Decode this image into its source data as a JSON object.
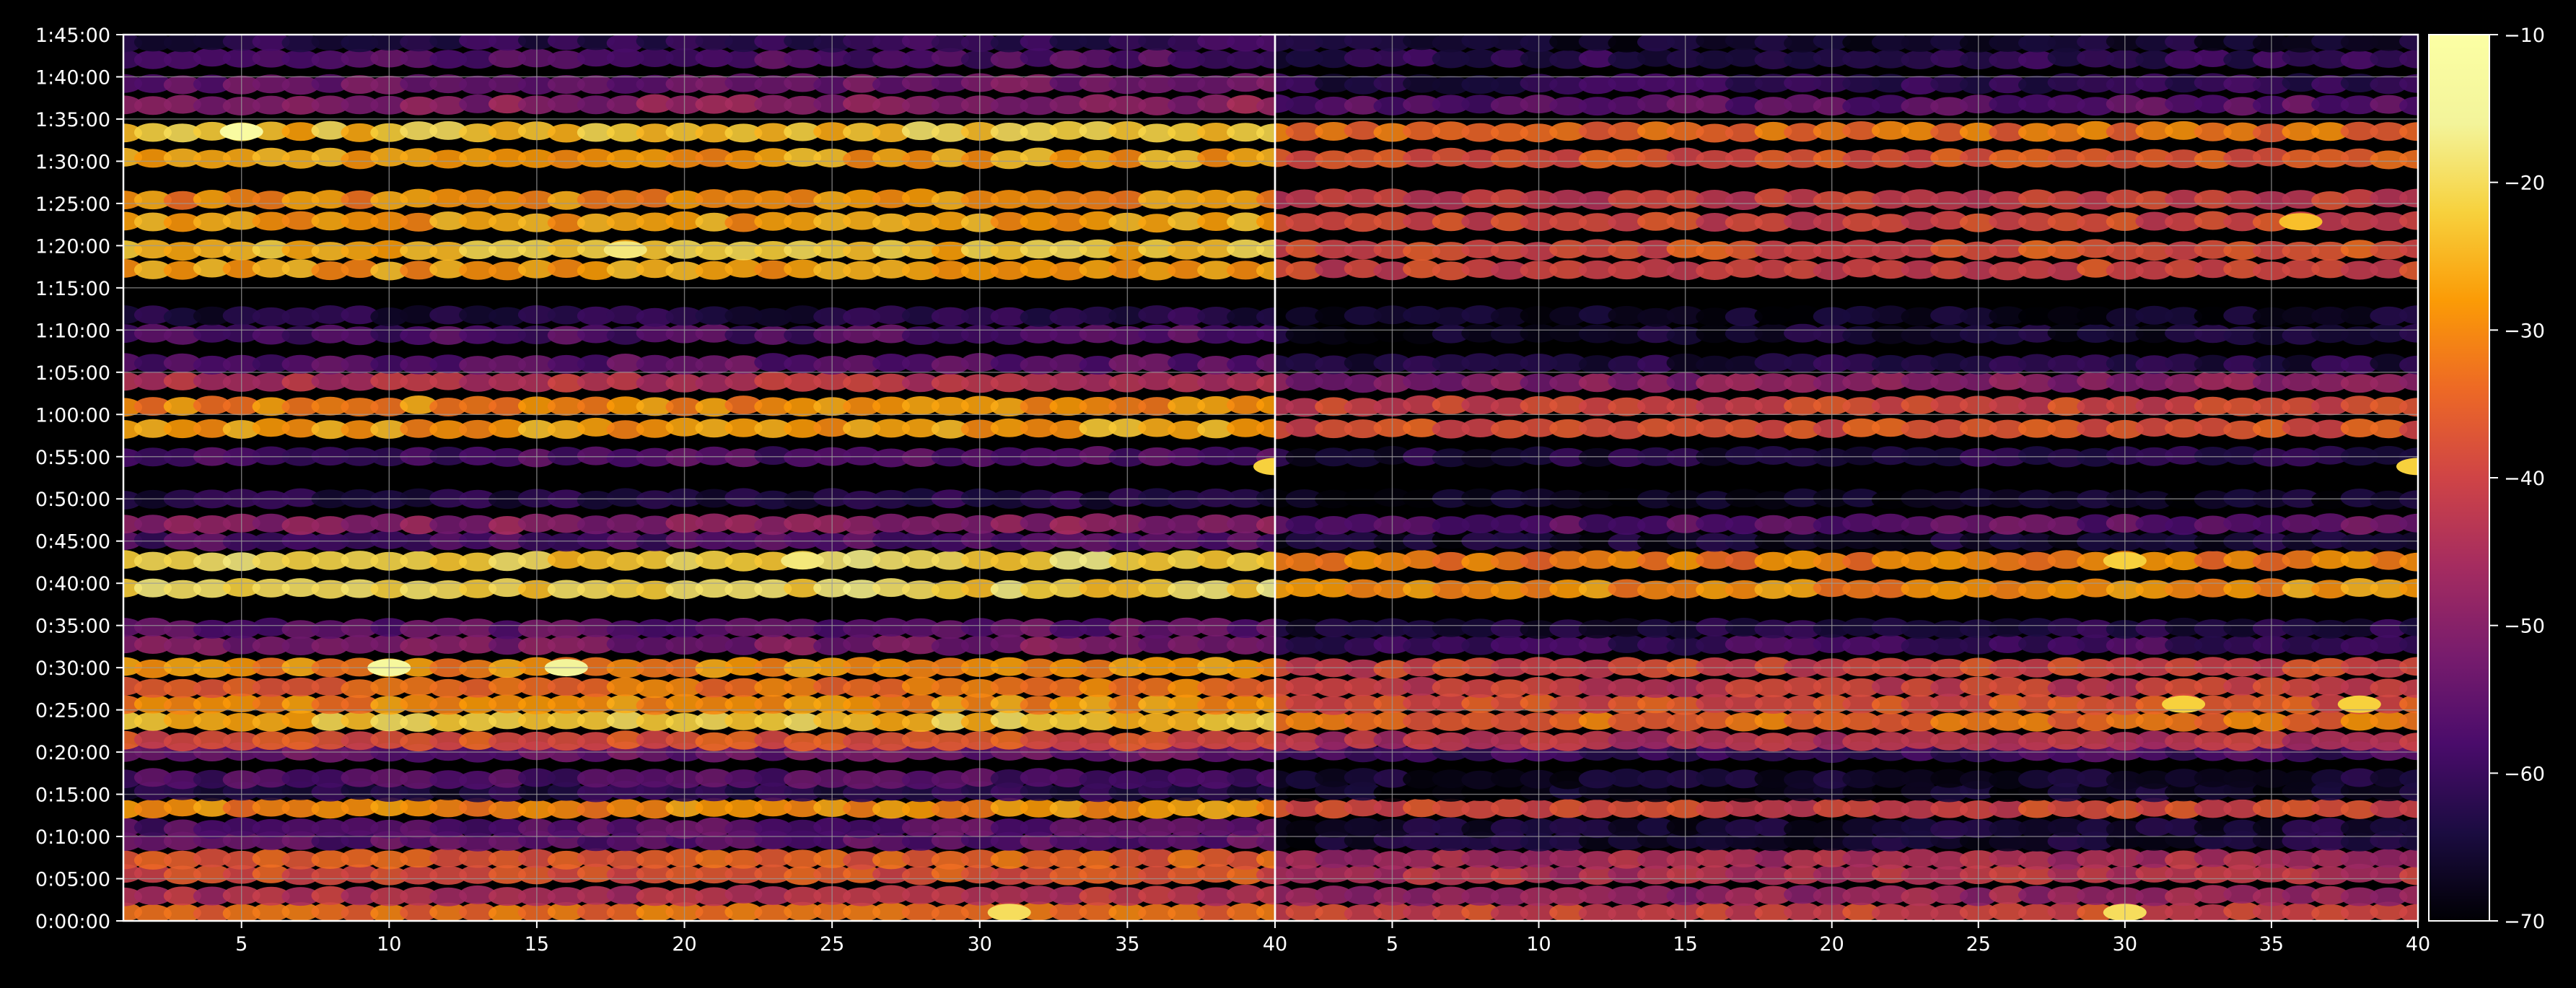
{
  "chart_data": {
    "type": "heatmap",
    "title": "",
    "xlabel": "",
    "ylabel": "",
    "colormap": "inferno",
    "colors": {
      "background": "#000000",
      "axis": "#ffffff",
      "grid": "#9a9a9a"
    },
    "grid": true,
    "legend": "colorbar-right",
    "y_unit": "seconds",
    "ylim": [
      0,
      6300
    ],
    "y_ticks": [
      0,
      300,
      600,
      900,
      1200,
      1500,
      1800,
      2100,
      2400,
      2700,
      3000,
      3300,
      3600,
      3900,
      4200,
      4500,
      4800,
      5100,
      5400,
      5700,
      6000,
      6300
    ],
    "y_tick_labels": [
      "0:00:00",
      "0:05:00",
      "0:10:00",
      "0:15:00",
      "0:20:00",
      "0:25:00",
      "0:30:00",
      "0:35:00",
      "0:40:00",
      "0:45:00",
      "0:50:00",
      "0:55:00",
      "1:00:00",
      "1:05:00",
      "1:10:00",
      "1:15:00",
      "1:20:00",
      "1:25:00",
      "1:30:00",
      "1:35:00",
      "1:40:00",
      "1:45:00"
    ],
    "colorbar": {
      "vmin": -70,
      "vmax": -10,
      "ticks": [
        -10,
        -20,
        -30,
        -40,
        -50,
        -60,
        -70
      ],
      "tick_labels": [
        "−10",
        "−20",
        "−30",
        "−40",
        "−50",
        "−60",
        "−70"
      ]
    },
    "panels": [
      {
        "name": "left",
        "xlim": [
          1,
          40
        ],
        "x_ticks": [
          5,
          10,
          15,
          20,
          25,
          30,
          35,
          40
        ],
        "x_tick_labels": [
          "5",
          "10",
          "15",
          "20",
          "25",
          "30",
          "35",
          "40"
        ],
        "rows": [
          {
            "t": 60,
            "level": -34,
            "var": 4
          },
          {
            "t": 180,
            "level": -44,
            "var": 4
          },
          {
            "t": 330,
            "level": -38,
            "var": 4
          },
          {
            "t": 440,
            "level": -36,
            "var": 4
          },
          {
            "t": 570,
            "level": -56,
            "var": 4
          },
          {
            "t": 660,
            "level": -57,
            "var": 4
          },
          {
            "t": 800,
            "level": -30,
            "var": 4
          },
          {
            "t": 920,
            "level": -64,
            "var": 4
          },
          {
            "t": 1010,
            "level": -58,
            "var": 4
          },
          {
            "t": 1200,
            "level": -54,
            "var": 4
          },
          {
            "t": 1280,
            "level": -38,
            "var": 4
          },
          {
            "t": 1420,
            "level": -24,
            "var": 4
          },
          {
            "t": 1540,
            "level": -30,
            "var": 4
          },
          {
            "t": 1660,
            "level": -34,
            "var": 4
          },
          {
            "t": 1800,
            "level": -30,
            "var": 4
          },
          {
            "t": 1960,
            "level": -52,
            "var": 4
          },
          {
            "t": 2080,
            "level": -56,
            "var": 4
          },
          {
            "t": 2360,
            "level": -22,
            "var": 4
          },
          {
            "t": 2560,
            "level": -22,
            "var": 4
          },
          {
            "t": 2700,
            "level": -58,
            "var": 4
          },
          {
            "t": 2820,
            "level": -50,
            "var": 4
          },
          {
            "t": 3000,
            "level": -64,
            "var": 4
          },
          {
            "t": 3300,
            "level": -58,
            "var": 4
          },
          {
            "t": 3500,
            "level": -28,
            "var": 4
          },
          {
            "t": 3660,
            "level": -30,
            "var": 4
          },
          {
            "t": 3830,
            "level": -44,
            "var": 4
          },
          {
            "t": 3960,
            "level": -56,
            "var": 4
          },
          {
            "t": 4170,
            "level": -58,
            "var": 4
          },
          {
            "t": 4300,
            "level": -64,
            "var": 4
          },
          {
            "t": 4630,
            "level": -28,
            "var": 4
          },
          {
            "t": 4770,
            "level": -25,
            "var": 4
          },
          {
            "t": 4970,
            "level": -28,
            "var": 4
          },
          {
            "t": 5130,
            "level": -30,
            "var": 4
          },
          {
            "t": 5420,
            "level": -28,
            "var": 4
          },
          {
            "t": 5610,
            "level": -24,
            "var": 4
          },
          {
            "t": 5800,
            "level": -50,
            "var": 4
          },
          {
            "t": 5950,
            "level": -54,
            "var": 4
          },
          {
            "t": 6130,
            "level": -58,
            "var": 4
          },
          {
            "t": 6250,
            "level": -62,
            "var": 4
          }
        ],
        "hotspots": [
          {
            "x": 5,
            "t": 5610,
            "level": -12
          },
          {
            "x": 10,
            "t": 1800,
            "level": -14
          },
          {
            "x": 16,
            "t": 1800,
            "level": -16
          },
          {
            "x": 18,
            "t": 4770,
            "level": -18
          },
          {
            "x": 24,
            "t": 2560,
            "level": -18
          },
          {
            "x": 31,
            "t": 60,
            "level": -20
          },
          {
            "x": 40,
            "t": 3230,
            "level": -22
          }
        ]
      },
      {
        "name": "right",
        "xlim": [
          1,
          40
        ],
        "x_ticks": [
          5,
          10,
          15,
          20,
          25,
          30,
          35,
          40
        ],
        "x_tick_labels": [
          "5",
          "10",
          "15",
          "20",
          "25",
          "30",
          "35",
          "40"
        ],
        "rows": [
          {
            "t": 60,
            "level": -40,
            "var": 4
          },
          {
            "t": 180,
            "level": -48,
            "var": 4
          },
          {
            "t": 330,
            "level": -44,
            "var": 4
          },
          {
            "t": 440,
            "level": -46,
            "var": 4
          },
          {
            "t": 570,
            "level": -66,
            "var": 4
          },
          {
            "t": 660,
            "level": -66,
            "var": 4
          },
          {
            "t": 800,
            "level": -40,
            "var": 4
          },
          {
            "t": 920,
            "level": -68,
            "var": 4
          },
          {
            "t": 1010,
            "level": -66,
            "var": 4
          },
          {
            "t": 1200,
            "level": -60,
            "var": 4
          },
          {
            "t": 1280,
            "level": -44,
            "var": 4
          },
          {
            "t": 1420,
            "level": -34,
            "var": 4
          },
          {
            "t": 1540,
            "level": -38,
            "var": 4
          },
          {
            "t": 1660,
            "level": -42,
            "var": 4
          },
          {
            "t": 1800,
            "level": -40,
            "var": 4
          },
          {
            "t": 1960,
            "level": -60,
            "var": 4
          },
          {
            "t": 2080,
            "level": -64,
            "var": 4
          },
          {
            "t": 2360,
            "level": -30,
            "var": 4
          },
          {
            "t": 2560,
            "level": -32,
            "var": 4
          },
          {
            "t": 2700,
            "level": -66,
            "var": 4
          },
          {
            "t": 2820,
            "level": -56,
            "var": 4
          },
          {
            "t": 3000,
            "level": -68,
            "var": 4
          },
          {
            "t": 3300,
            "level": -64,
            "var": 4
          },
          {
            "t": 3500,
            "level": -38,
            "var": 4
          },
          {
            "t": 3660,
            "level": -40,
            "var": 4
          },
          {
            "t": 3830,
            "level": -50,
            "var": 4
          },
          {
            "t": 3960,
            "level": -64,
            "var": 4
          },
          {
            "t": 4170,
            "level": -66,
            "var": 4
          },
          {
            "t": 4300,
            "level": -68,
            "var": 4
          },
          {
            "t": 4630,
            "level": -40,
            "var": 4
          },
          {
            "t": 4770,
            "level": -38,
            "var": 4
          },
          {
            "t": 4970,
            "level": -40,
            "var": 4
          },
          {
            "t": 5130,
            "level": -42,
            "var": 4
          },
          {
            "t": 5420,
            "level": -38,
            "var": 4
          },
          {
            "t": 5610,
            "level": -34,
            "var": 4
          },
          {
            "t": 5800,
            "level": -56,
            "var": 4
          },
          {
            "t": 5950,
            "level": -62,
            "var": 4
          },
          {
            "t": 6130,
            "level": -62,
            "var": 4
          },
          {
            "t": 6250,
            "level": -66,
            "var": 4
          }
        ],
        "hotspots": [
          {
            "x": 30,
            "t": 60,
            "level": -20
          },
          {
            "x": 32,
            "t": 1540,
            "level": -22
          },
          {
            "x": 38,
            "t": 1540,
            "level": -22
          },
          {
            "x": 36,
            "t": 4970,
            "level": -24
          },
          {
            "x": 40,
            "t": 3230,
            "level": -22
          },
          {
            "x": 30,
            "t": 2560,
            "level": -22
          }
        ]
      }
    ]
  }
}
